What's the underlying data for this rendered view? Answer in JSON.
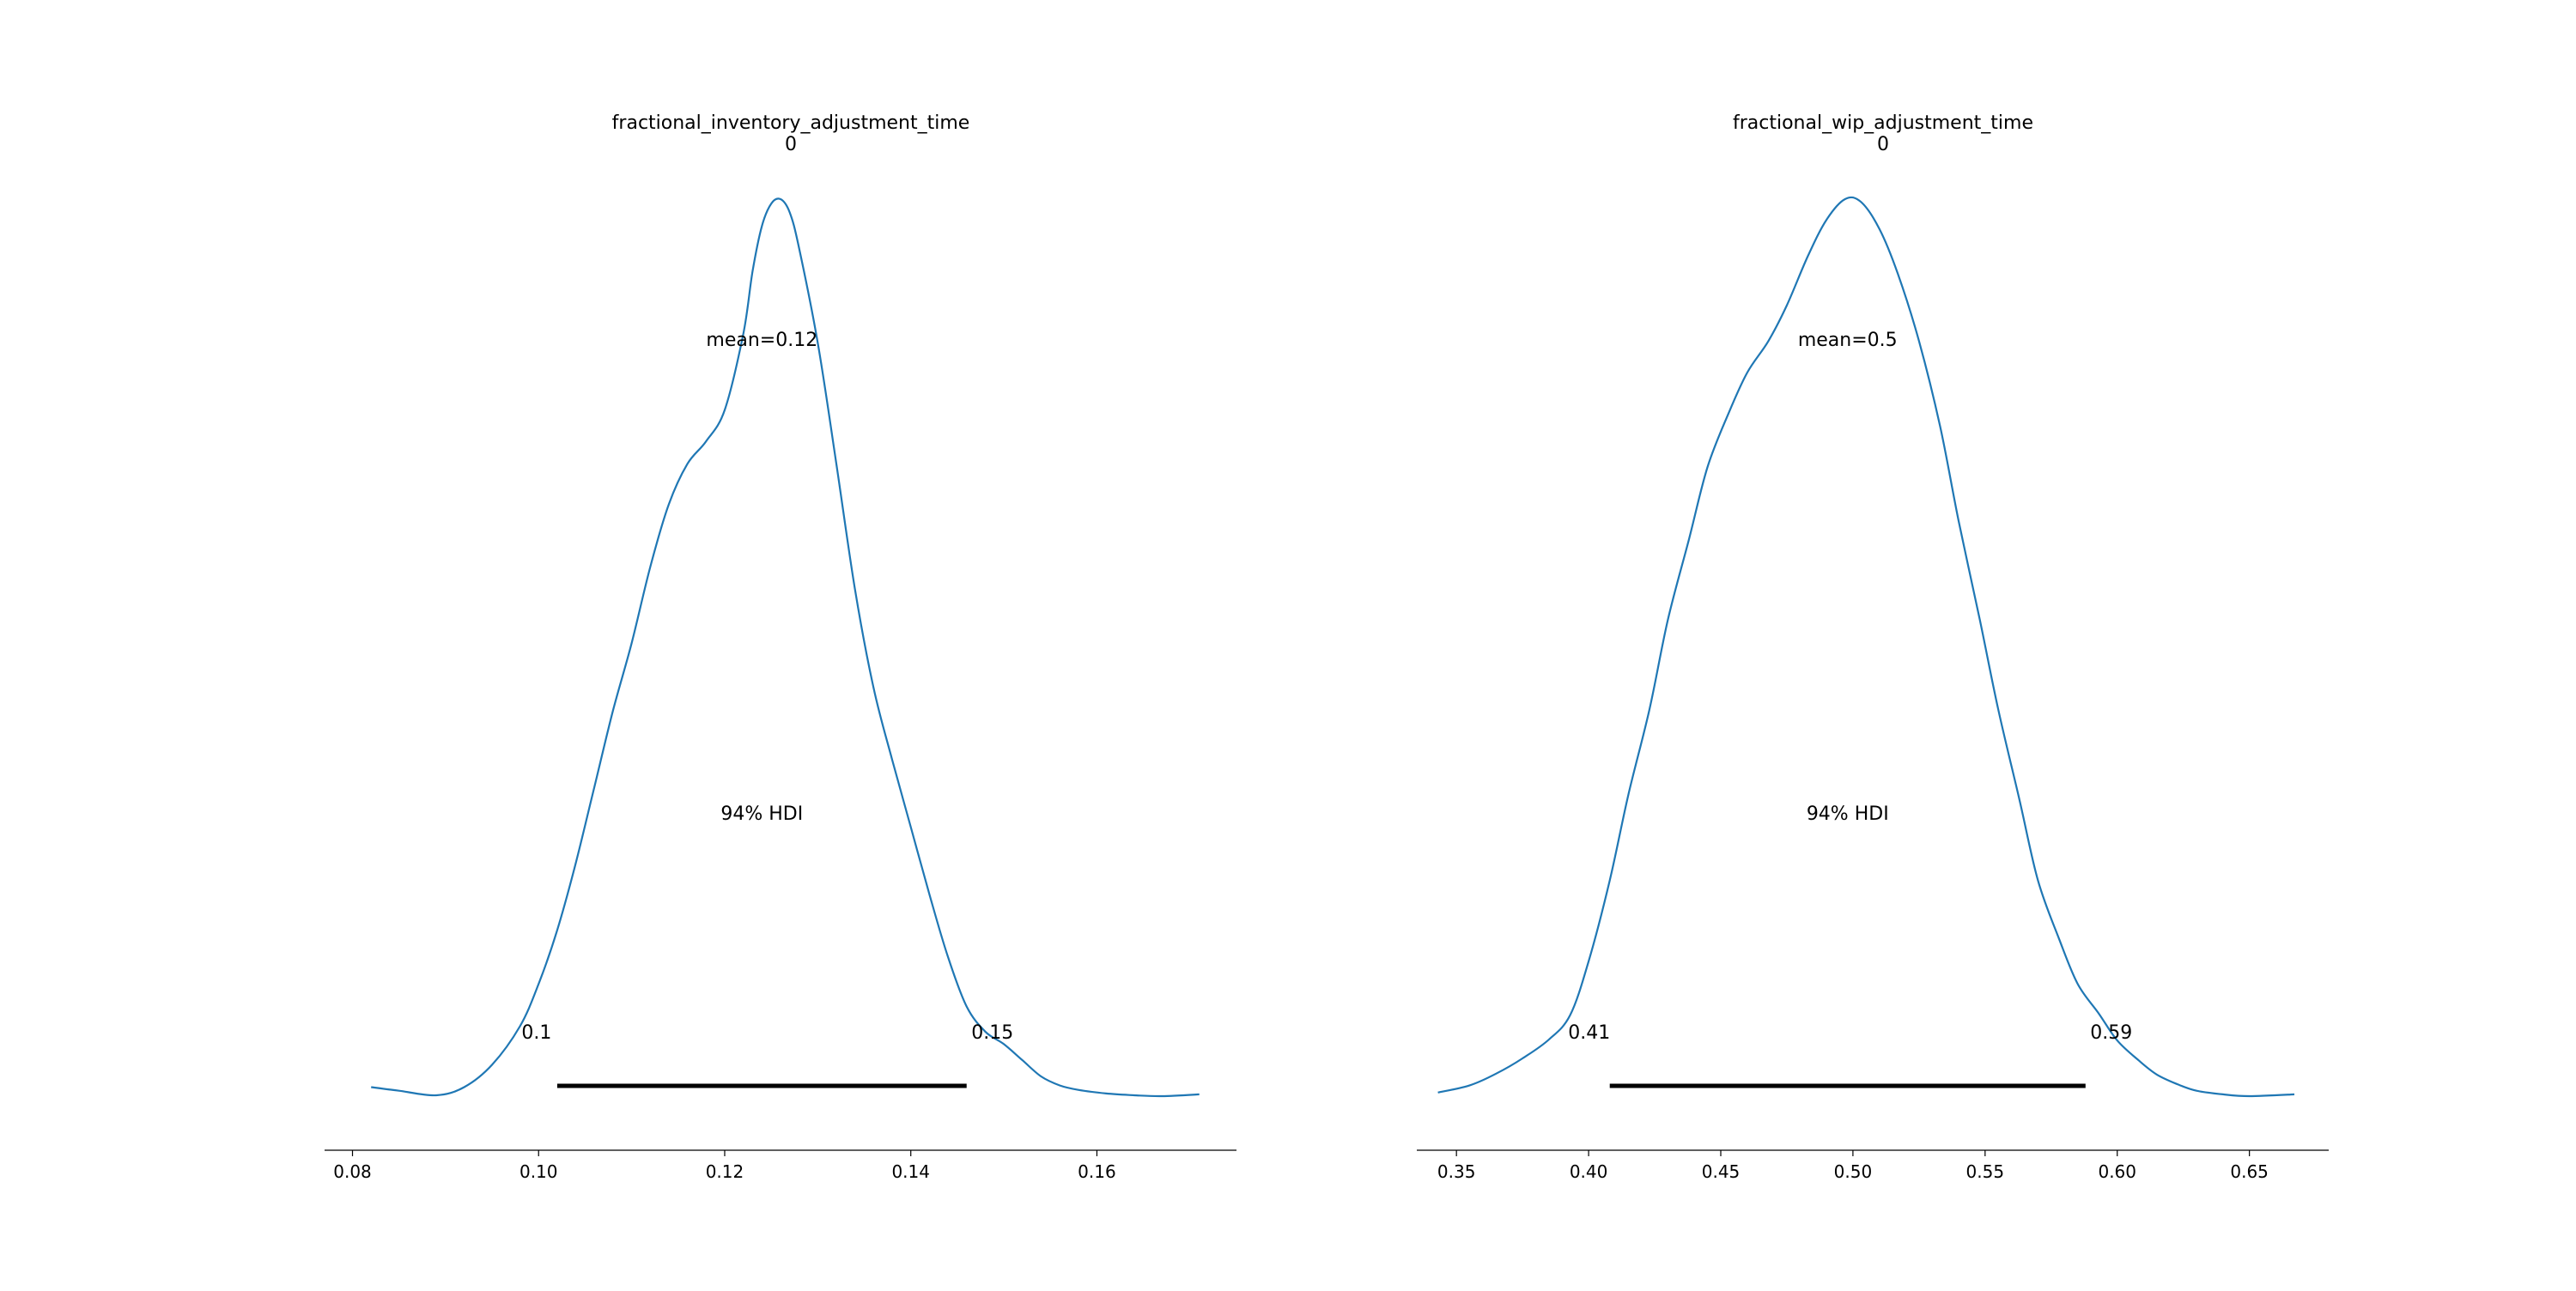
{
  "colors": {
    "density": "#1f77b4",
    "hdi": "#000000",
    "axis": "#000000"
  },
  "chart_data": [
    {
      "type": "line",
      "title": "fractional_inventory_adjustment_time",
      "subtitle": "0",
      "mean_label": "mean=0.12",
      "hdi_label": "94% HDI",
      "hdi": {
        "low": 0.102,
        "high": 0.146,
        "low_label": "0.1",
        "high_label": "0.15"
      },
      "xlim": [
        0.077,
        0.175
      ],
      "ylim": [
        0,
        1.09
      ],
      "ticks": [
        0.08,
        0.1,
        0.12,
        0.14,
        0.16
      ],
      "tick_labels": [
        "0.08",
        "0.10",
        "0.12",
        "0.14",
        "0.16"
      ],
      "x": [
        0.082,
        0.085,
        0.089,
        0.092,
        0.095,
        0.098,
        0.1,
        0.102,
        0.104,
        0.106,
        0.108,
        0.11,
        0.112,
        0.114,
        0.116,
        0.118,
        0.12,
        0.122,
        0.123,
        0.124,
        0.125,
        0.126,
        0.127,
        0.128,
        0.13,
        0.132,
        0.134,
        0.136,
        0.138,
        0.14,
        0.142,
        0.144,
        0.146,
        0.148,
        0.15,
        0.152,
        0.154,
        0.156,
        0.158,
        0.161,
        0.164,
        0.167,
        0.171
      ],
      "y": [
        0.01,
        0.006,
        0.001,
        0.01,
        0.035,
        0.078,
        0.125,
        0.185,
        0.26,
        0.345,
        0.43,
        0.505,
        0.59,
        0.66,
        0.705,
        0.73,
        0.765,
        0.85,
        0.92,
        0.97,
        0.995,
        1.0,
        0.985,
        0.945,
        0.84,
        0.705,
        0.565,
        0.455,
        0.375,
        0.3,
        0.225,
        0.155,
        0.1,
        0.072,
        0.058,
        0.04,
        0.022,
        0.012,
        0.007,
        0.003,
        0.001,
        0.0,
        0.002
      ]
    },
    {
      "type": "line",
      "title": "fractional_wip_adjustment_time",
      "subtitle": "0",
      "mean_label": "mean=0.5",
      "hdi_label": "94% HDI",
      "hdi": {
        "low": 0.408,
        "high": 0.588,
        "low_label": "0.41",
        "high_label": "0.59"
      },
      "xlim": [
        0.335,
        0.68
      ],
      "ylim": [
        0,
        1.09
      ],
      "ticks": [
        0.35,
        0.4,
        0.45,
        0.5,
        0.55,
        0.6,
        0.65
      ],
      "tick_labels": [
        "0.35",
        "0.40",
        "0.45",
        "0.50",
        "0.55",
        "0.60",
        "0.65"
      ],
      "x": [
        0.343,
        0.355,
        0.365,
        0.375,
        0.385,
        0.393,
        0.4,
        0.408,
        0.415,
        0.423,
        0.43,
        0.438,
        0.445,
        0.453,
        0.46,
        0.468,
        0.475,
        0.483,
        0.49,
        0.497,
        0.503,
        0.51,
        0.517,
        0.525,
        0.533,
        0.54,
        0.548,
        0.555,
        0.563,
        0.57,
        0.578,
        0.585,
        0.593,
        0.6,
        0.608,
        0.615,
        0.623,
        0.63,
        0.64,
        0.65,
        0.667
      ],
      "y": [
        0.004,
        0.012,
        0.025,
        0.042,
        0.063,
        0.09,
        0.15,
        0.24,
        0.335,
        0.43,
        0.53,
        0.62,
        0.7,
        0.76,
        0.805,
        0.84,
        0.88,
        0.935,
        0.975,
        0.998,
        0.995,
        0.965,
        0.915,
        0.84,
        0.745,
        0.64,
        0.53,
        0.43,
        0.33,
        0.24,
        0.175,
        0.125,
        0.092,
        0.062,
        0.04,
        0.024,
        0.013,
        0.006,
        0.002,
        0.0,
        0.002
      ]
    }
  ]
}
